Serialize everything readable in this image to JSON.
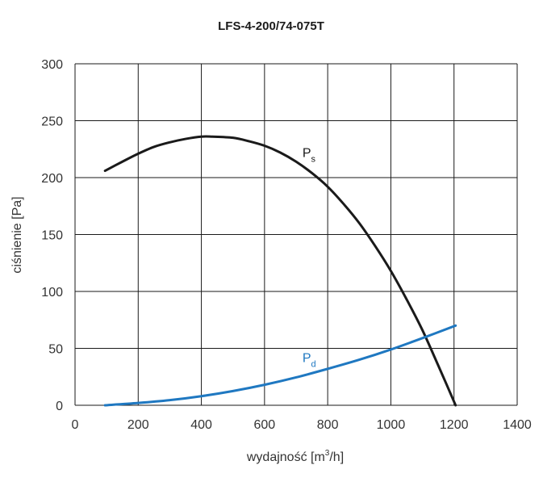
{
  "chart_data": {
    "type": "line",
    "title": "LFS-4-200/74-075T",
    "xlabel_main": "wydajność [m",
    "xlabel_sup": "3",
    "xlabel_tail": "/h]",
    "ylabel": "ciśnienie [Pa]",
    "xlim": [
      0,
      1400
    ],
    "ylim": [
      0,
      300
    ],
    "x_ticks": [
      "0",
      "200",
      "400",
      "600",
      "800",
      "1000",
      "1200",
      "1400"
    ],
    "y_ticks": [
      "0",
      "50",
      "100",
      "150",
      "200",
      "250",
      "300"
    ],
    "grid": true,
    "series": [
      {
        "name": "P",
        "subscript": "s",
        "color": "#1a1a1a",
        "label_at": [
          720,
          218
        ],
        "x": [
          95,
          150,
          200,
          250,
          300,
          350,
          400,
          435,
          500,
          550,
          600,
          650,
          700,
          750,
          800,
          850,
          900,
          950,
          1000,
          1050,
          1100,
          1150,
          1180,
          1205
        ],
        "y": [
          206,
          214,
          221,
          227,
          231,
          234,
          236,
          236,
          235,
          232,
          228,
          222,
          214,
          204,
          192,
          177,
          160,
          140,
          118,
          93,
          66,
          35,
          16,
          0
        ]
      },
      {
        "name": "P",
        "subscript": "d",
        "color": "#1f78c1",
        "label_at": [
          720,
          38
        ],
        "x": [
          95,
          200,
          300,
          400,
          500,
          600,
          700,
          800,
          900,
          1000,
          1100,
          1205
        ],
        "y": [
          0,
          2,
          4.5,
          8,
          12.5,
          18,
          24.5,
          32,
          40,
          49,
          59,
          70
        ]
      }
    ]
  }
}
